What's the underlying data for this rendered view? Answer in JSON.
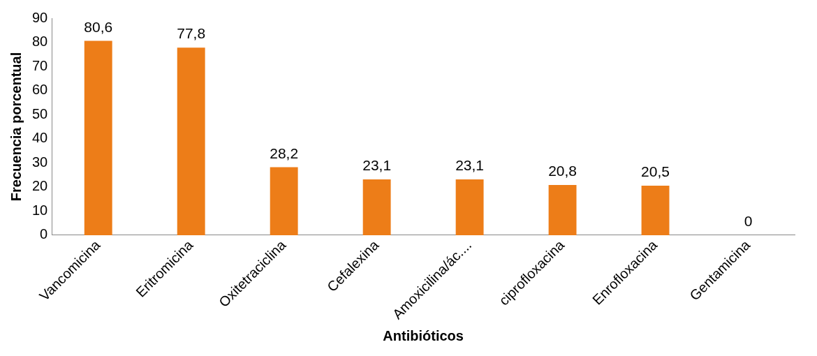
{
  "chart_data": {
    "type": "bar",
    "xlabel": "Antibióticos",
    "ylabel": "Frecuencia porcentual",
    "categories": [
      "Vancomicina",
      "Eritromicina",
      "Oxitetraciclina",
      "Cefalexina",
      "Amoxicilina/ác....",
      "ciprofloxacina",
      "Enrofloxacina",
      "Gentamicina"
    ],
    "values": [
      80.6,
      77.8,
      28.2,
      23.1,
      23.1,
      20.8,
      20.5,
      0
    ],
    "value_labels": [
      "80,6",
      "77,8",
      "28,2",
      "23,1",
      "23,1",
      "20,8",
      "20,5",
      "0"
    ],
    "color": "#ed7d18",
    "ylim": [
      0,
      90
    ],
    "yticks": [
      0,
      10,
      20,
      30,
      40,
      50,
      60,
      70,
      80,
      90
    ],
    "grid": false,
    "legend": false
  }
}
